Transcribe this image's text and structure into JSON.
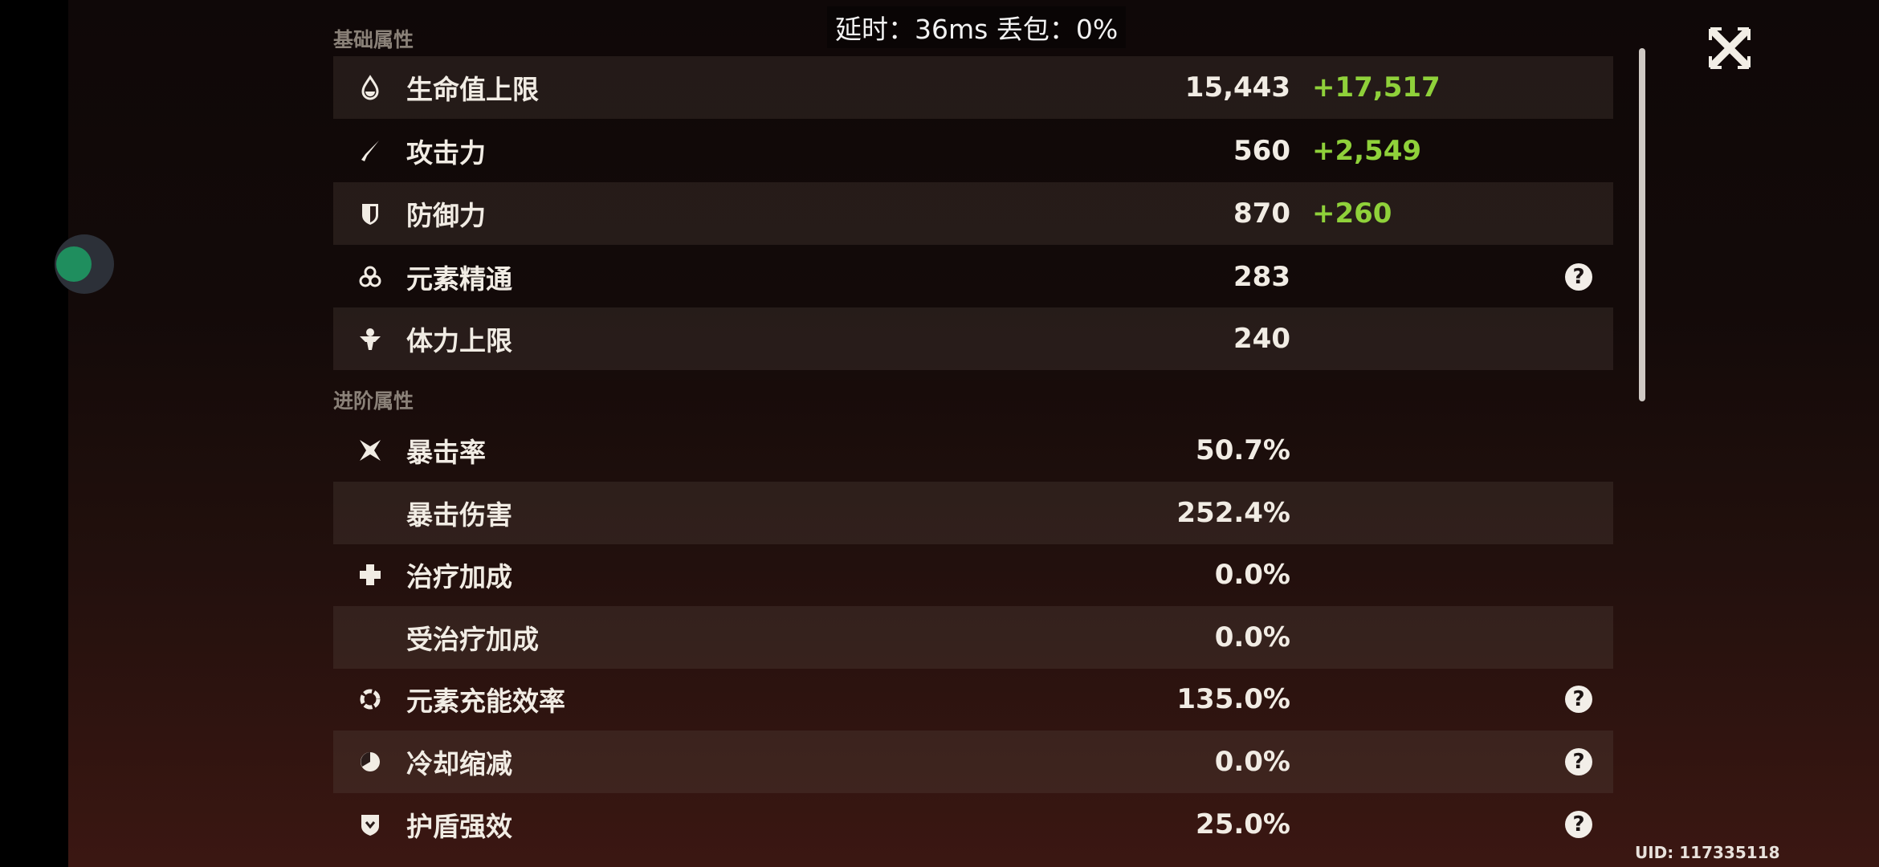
{
  "overlay": {
    "latency": "延时：36ms 丢包：0%"
  },
  "sections": {
    "basic": "基础属性",
    "advanced": "进阶属性"
  },
  "basic": [
    {
      "icon": "hp-drop-icon",
      "label": "生命值上限",
      "value": "15,443",
      "bonus": "+17,517"
    },
    {
      "icon": "sword-icon",
      "label": "攻击力",
      "value": "560",
      "bonus": "+2,549"
    },
    {
      "icon": "shield-icon",
      "label": "防御力",
      "value": "870",
      "bonus": "+260"
    },
    {
      "icon": "elemental-mastery-icon",
      "label": "元素精通",
      "value": "283",
      "help": true
    },
    {
      "icon": "stamina-icon",
      "label": "体力上限",
      "value": "240"
    }
  ],
  "advanced": [
    {
      "icon": "crit-rate-icon",
      "label": "暴击率",
      "value": "50.7%"
    },
    {
      "label": "暴击伤害",
      "value": "252.4%"
    },
    {
      "icon": "healing-cross-icon",
      "label": "治疗加成",
      "value": "0.0%"
    },
    {
      "label": "受治疗加成",
      "value": "0.0%"
    },
    {
      "icon": "energy-recharge-icon",
      "label": "元素充能效率",
      "value": "135.0%",
      "help": true
    },
    {
      "icon": "cooldown-icon",
      "label": "冷却缩减",
      "value": "0.0%",
      "help": true
    },
    {
      "icon": "shield-strength-icon",
      "label": "护盾强效",
      "value": "25.0%",
      "help": true
    }
  ],
  "help_glyph": "?",
  "uid": "UID: 117335118",
  "colors": {
    "bonus": "#8fd13a",
    "text": "#f1ece4"
  }
}
